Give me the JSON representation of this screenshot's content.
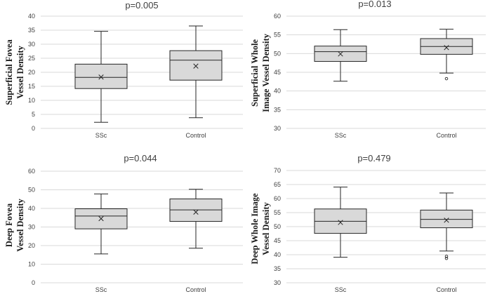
{
  "chart_data": [
    {
      "type": "box",
      "title": "p=0.005",
      "ylabel": [
        "Superficial Fovea",
        "Vessel Density"
      ],
      "ylim": [
        0,
        40
      ],
      "ytick_step": 5,
      "grid": true,
      "categories": [
        "SSc",
        "Control"
      ],
      "boxes": [
        {
          "min": 2.2,
          "q1": 14.2,
          "median": 18.2,
          "q3": 22.9,
          "max": 34.6,
          "mean": 18.3,
          "outliers": []
        },
        {
          "min": 3.8,
          "q1": 17.2,
          "median": 24.3,
          "q3": 27.7,
          "max": 36.5,
          "mean": 22.2,
          "outliers": []
        }
      ]
    },
    {
      "type": "box",
      "title": "p=0.013",
      "ylabel": [
        "Superficial Whole",
        "Image Vessel Density"
      ],
      "ylim": [
        30,
        60
      ],
      "ytick_step": 5,
      "grid": true,
      "categories": [
        "SSc",
        "Control"
      ],
      "boxes": [
        {
          "min": 42.6,
          "q1": 47.9,
          "median": 50.5,
          "q3": 52.0,
          "max": 56.4,
          "mean": 49.9,
          "outliers": []
        },
        {
          "min": 44.8,
          "q1": 49.8,
          "median": 51.9,
          "q3": 54.0,
          "max": 56.5,
          "mean": 51.6,
          "outliers": [
            43.3
          ]
        }
      ]
    },
    {
      "type": "box",
      "title": "p=0.044",
      "ylabel": [
        "Deep Fovea",
        "Vessel Density"
      ],
      "ylim": [
        0,
        60
      ],
      "ytick_step": 10,
      "grid": true,
      "categories": [
        "SSc",
        "Control"
      ],
      "boxes": [
        {
          "min": 15.5,
          "q1": 29.0,
          "median": 35.9,
          "q3": 39.8,
          "max": 47.8,
          "mean": 34.5,
          "outliers": []
        },
        {
          "min": 18.6,
          "q1": 33.0,
          "median": 39.2,
          "q3": 45.1,
          "max": 50.3,
          "mean": 38.0,
          "outliers": []
        }
      ]
    },
    {
      "type": "box",
      "title": "p=0.479",
      "ylabel": [
        "Deep Whole Image",
        "Vessel Density"
      ],
      "ylim": [
        30,
        70
      ],
      "ytick_step": 5,
      "grid": true,
      "categories": [
        "SSc",
        "Control"
      ],
      "boxes": [
        {
          "min": 39.1,
          "q1": 47.6,
          "median": 51.9,
          "q3": 56.3,
          "max": 64.1,
          "mean": 51.5,
          "outliers": []
        },
        {
          "min": 41.3,
          "q1": 49.6,
          "median": 52.6,
          "q3": 55.9,
          "max": 62.0,
          "mean": 52.3,
          "outliers": [
            38.7,
            39.4
          ]
        }
      ]
    }
  ]
}
